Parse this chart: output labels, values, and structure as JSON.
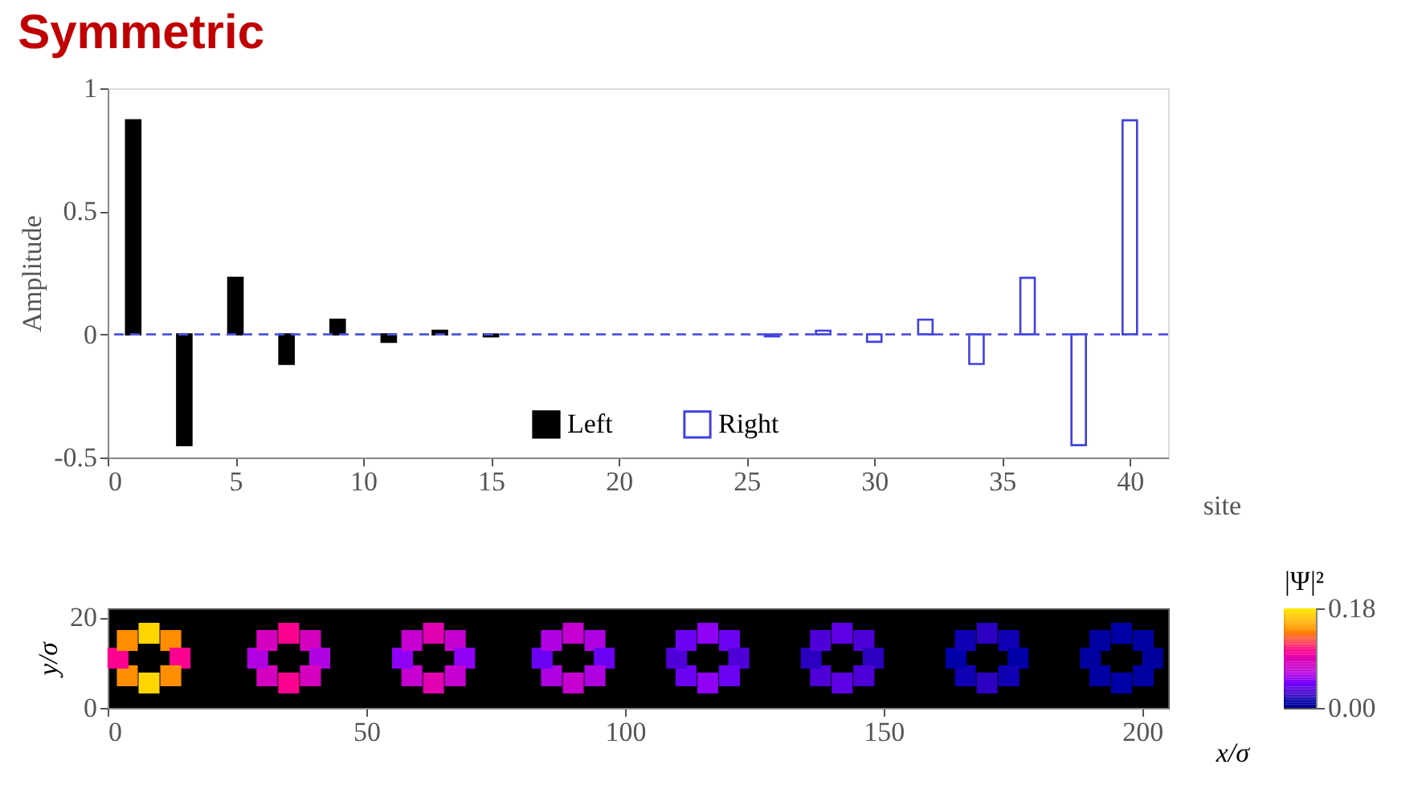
{
  "chart_data": [
    {
      "type": "bar",
      "title": "Symmetric",
      "xlabel": "site",
      "ylabel": "Amplitude",
      "xlim": [
        0,
        41.5
      ],
      "xticks": [
        0,
        5,
        10,
        15,
        20,
        25,
        30,
        35,
        40
      ],
      "ylim": [
        -0.5,
        1
      ],
      "yticks": [
        -0.5,
        0,
        0.5,
        1
      ],
      "grid": false,
      "legend": "bottom",
      "series": [
        {
          "name": "Left",
          "color": "#000000",
          "x": [
            1,
            3,
            5,
            7,
            9,
            11,
            13,
            15
          ],
          "values": [
            0.87,
            -0.45,
            0.23,
            -0.12,
            0.06,
            -0.03,
            0.015,
            -0.008
          ]
        },
        {
          "name": "Right",
          "color": "#4040e0",
          "x": [
            26,
            28,
            30,
            32,
            34,
            36,
            38,
            40
          ],
          "values": [
            -0.008,
            0.015,
            -0.03,
            0.06,
            -0.12,
            0.23,
            -0.45,
            0.87
          ]
        }
      ],
      "ref_lines": [
        {
          "axis": "y",
          "value": 0,
          "color": "#5050e0",
          "line_style": "dashed"
        }
      ]
    },
    {
      "type": "scatter",
      "xlabel": "x/σ",
      "ylabel": "y/σ",
      "clabel": "|Ψ|²",
      "xlim": [
        0,
        205
      ],
      "xticks": [
        0,
        50,
        100,
        150,
        200
      ],
      "ylim": [
        0,
        22
      ],
      "yticks": [
        0,
        20
      ],
      "clim": [
        0,
        0.18
      ],
      "cticks": [
        {
          "value": 0,
          "label": "0.00"
        },
        0.18
      ],
      "marker": "square",
      "grid": false,
      "series": [
        {
          "x": [
            8,
            12.2,
            14,
            12.2,
            8,
            3.8,
            2,
            3.8,
            35,
            39.2,
            41,
            39.2,
            35,
            30.8,
            29,
            30.8,
            63,
            67.2,
            69,
            67.2,
            63,
            58.8,
            57,
            58.8,
            90,
            94.2,
            96,
            94.2,
            90,
            85.8,
            84,
            85.8,
            116,
            120.2,
            122,
            120.2,
            116,
            111.8,
            110,
            111.8,
            142,
            146.2,
            148,
            146.2,
            142,
            137.8,
            136,
            137.8,
            170,
            174.2,
            176,
            174.2,
            170,
            165.8,
            164,
            165.8,
            196,
            200.2,
            202,
            200.2,
            196,
            191.8,
            190,
            191.8
          ],
          "values": [
            16.5,
            14.9,
            11,
            7.1,
            5.5,
            7.1,
            11,
            14.9,
            16.5,
            14.9,
            11,
            7.1,
            5.5,
            7.1,
            11,
            14.9,
            16.5,
            14.9,
            11,
            7.1,
            5.5,
            7.1,
            11,
            14.9,
            16.5,
            14.9,
            11,
            7.1,
            5.5,
            7.1,
            11,
            14.9,
            16.5,
            14.9,
            11,
            7.1,
            5.5,
            7.1,
            11,
            14.9,
            16.5,
            14.9,
            11,
            7.1,
            5.5,
            7.1,
            11,
            14.9,
            16.5,
            14.9,
            11,
            7.1,
            5.5,
            7.1,
            11,
            14.9,
            16.5,
            14.9,
            11,
            7.1,
            5.5,
            7.1,
            11,
            14.9
          ],
          "cvalues": [
            0.17,
            0.14,
            0.1,
            0.14,
            0.17,
            0.14,
            0.1,
            0.14,
            0.1,
            0.08,
            0.06,
            0.08,
            0.1,
            0.08,
            0.06,
            0.08,
            0.09,
            0.07,
            0.05,
            0.07,
            0.09,
            0.07,
            0.05,
            0.07,
            0.07,
            0.06,
            0.04,
            0.06,
            0.07,
            0.06,
            0.04,
            0.06,
            0.05,
            0.04,
            0.03,
            0.04,
            0.05,
            0.04,
            0.03,
            0.04,
            0.035,
            0.03,
            0.02,
            0.03,
            0.035,
            0.03,
            0.02,
            0.03,
            0.02,
            0.015,
            0.01,
            0.015,
            0.02,
            0.015,
            0.01,
            0.015,
            0.01,
            0.008,
            0.006,
            0.008,
            0.01,
            0.008,
            0.006,
            0.008
          ]
        }
      ]
    }
  ]
}
